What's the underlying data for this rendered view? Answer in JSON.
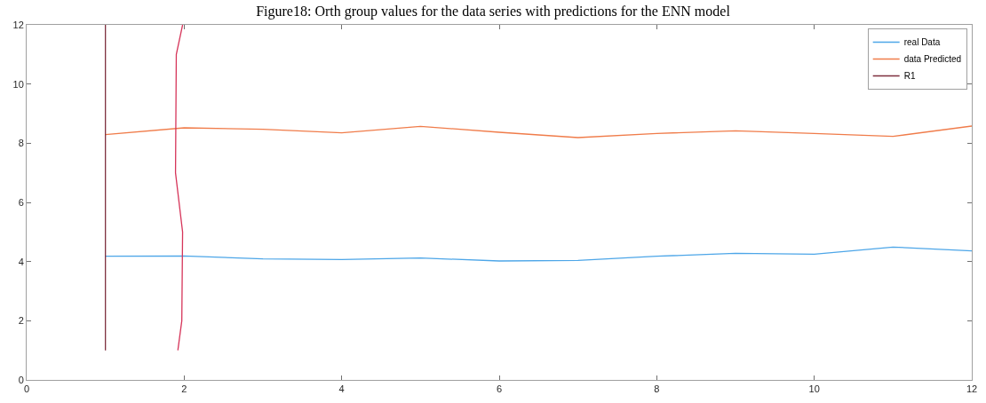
{
  "chart_data": {
    "type": "line",
    "title": "Figure18: Orth group values for the data series with predictions for the ENN model",
    "x": [
      1,
      2,
      3,
      4,
      5,
      6,
      7,
      8,
      9,
      10,
      11,
      12
    ],
    "series": [
      {
        "name": "real Data",
        "color": "#4da6e8",
        "values": [
          4.18,
          4.19,
          4.09,
          4.07,
          4.12,
          4.02,
          4.04,
          4.18,
          4.28,
          4.25,
          4.49,
          4.36
        ]
      },
      {
        "name": "data Predicted",
        "color": "#f07c4a",
        "values": [
          8.29,
          8.52,
          8.47,
          8.35,
          8.57,
          8.37,
          8.19,
          8.33,
          8.42,
          8.33,
          8.23,
          8.58
        ]
      },
      {
        "name": "R1",
        "color": "#7e2f3e",
        "x": [
          1,
          1
        ],
        "values": [
          1,
          12
        ]
      },
      {
        "color": "#d6355a",
        "x": [
          1.92,
          1.97,
          1.98,
          1.89,
          1.9,
          1.98
        ],
        "values": [
          1,
          2,
          5,
          7,
          11,
          12
        ]
      }
    ],
    "xlim": [
      0,
      12
    ],
    "xticks": [
      0,
      2,
      4,
      6,
      8,
      10,
      12
    ],
    "ylim": [
      0,
      12
    ],
    "yticks": [
      0,
      2,
      4,
      6,
      8,
      10,
      12
    ],
    "grid": false,
    "legend": "top right"
  }
}
